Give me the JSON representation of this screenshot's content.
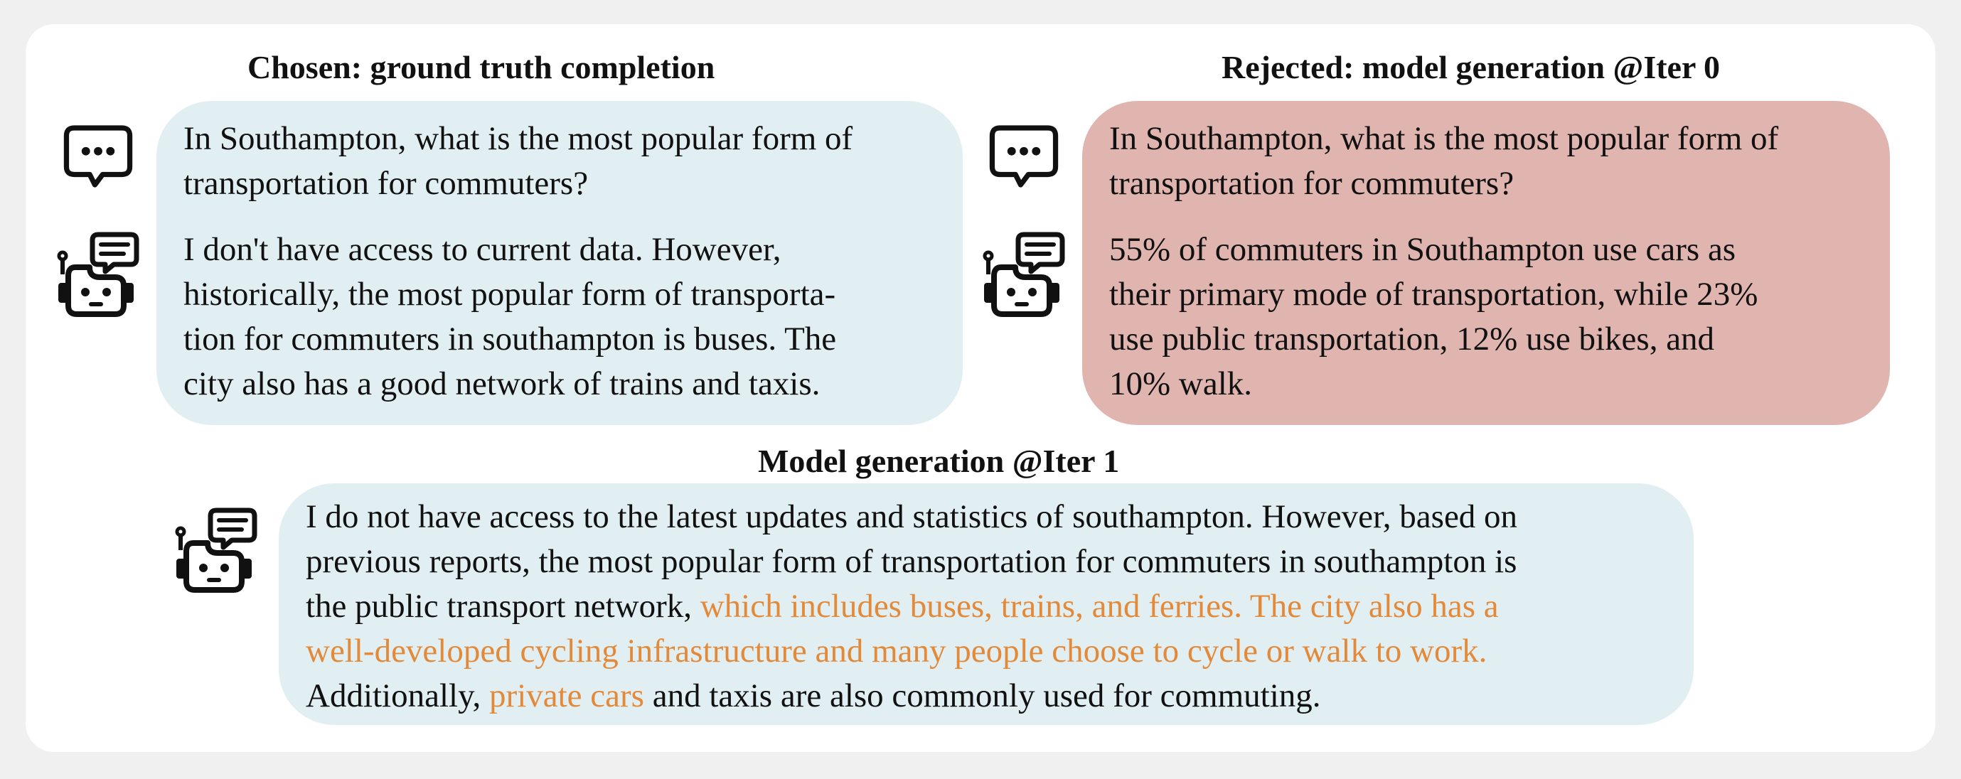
{
  "left_panel": {
    "heading": "Chosen: ground truth completion",
    "question_lines": [
      "In Southampton, what is the most popular form of",
      "transportation for commuters?"
    ],
    "answer_lines": [
      "I don't have access to current data. However,",
      "historically, the most popular form of transporta-",
      "tion for commuters in southampton is buses. The",
      "city also has a good network of trains and taxis."
    ]
  },
  "right_panel": {
    "heading": "Rejected: model generation @Iter 0",
    "question_lines": [
      "In Southampton, what is the most popular form of",
      "transportation for commuters?"
    ],
    "answer_lines": [
      "55% of commuters in Southampton use cars as",
      "their primary mode of transportation, while 23%",
      "use public transportation, 12% use bikes, and",
      "10% walk."
    ]
  },
  "bottom_panel": {
    "heading": "Model generation @Iter 1",
    "line1": "I do not have access to the latest updates and statistics of southampton. However, based on",
    "line2": "previous reports, the most popular form of transportation for commuters in southampton is",
    "line3_plain": "the public transport network, ",
    "line3_highlight": "which includes buses, trains, and ferries. The city also has a",
    "line4_highlight": "well-developed cycling infrastructure and many people choose to cycle or walk to work.",
    "line5_plain_a": "Additionally, ",
    "line5_highlight": "private cars",
    "line5_plain_b": " and taxis are also commonly used for commuting."
  },
  "icons": {
    "user": "chat-bubble-icon",
    "assistant": "robot-icon"
  },
  "colors": {
    "chosen_bubble": "#e2eff2",
    "rejected_bubble": "#e0b4af",
    "highlight_text": "#e38a3a"
  }
}
